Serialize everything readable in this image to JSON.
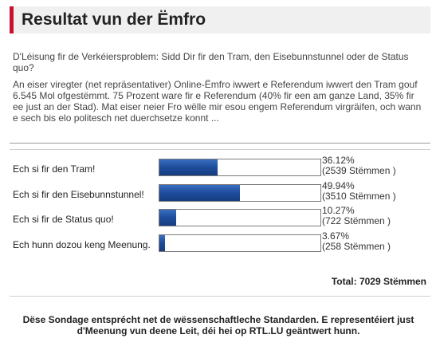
{
  "header": {
    "title": "Resultat vun der Ëmfro"
  },
  "poll": {
    "question": "D'Léisung fir de Verkéiersproblem: Sidd Dir fir den Tram, den Eisebunnstunnel oder de Status quo?",
    "description": "An eiser viregter (net repräsentativer) Online-Ëmfro iwwert e Referendum iwwert den Tram gouf 6.545 Mol ofgestëmmt. 75 Prozent ware fir e Referendum (40% fir een am ganze Land, 35% fir ee just an der Stad). Mat eiser neier Fro wëlle mir esou engem Referendum virgräifen, och wann e sech bis elo politesch net duerchsetze konnt ...",
    "answers": [
      {
        "label": "Ech si fir den Tram!",
        "percent": "36.12%",
        "votes": "(2539 Stëmmen )",
        "fraction": 0.3612
      },
      {
        "label": "Ech si fir den Eisebunnstunnel!",
        "percent": "49.94%",
        "votes": "(3510 Stëmmen )",
        "fraction": 0.4994
      },
      {
        "label": "Ech si fir de Status quo!",
        "percent": "10.27%",
        "votes": "(722 Stëmmen )",
        "fraction": 0.1027
      },
      {
        "label": "Ech hunn dozou keng Meenung.",
        "percent": "3.67%",
        "votes": "(258 Stëmmen )",
        "fraction": 0.0367
      }
    ],
    "total": "Total: 7029 Stëmmen"
  },
  "footer": {
    "disclaimer": "Dëse Sondage entsprécht net de wëssenschaftleche Standarden. E representéiert just d'Meenung vun deene Leit, déi hei op RTL.LU geäntwert hunn."
  },
  "colors": {
    "accent": "#c8102e",
    "bar_fill": "#1f4f9e",
    "header_bg": "#f0f0f0"
  }
}
